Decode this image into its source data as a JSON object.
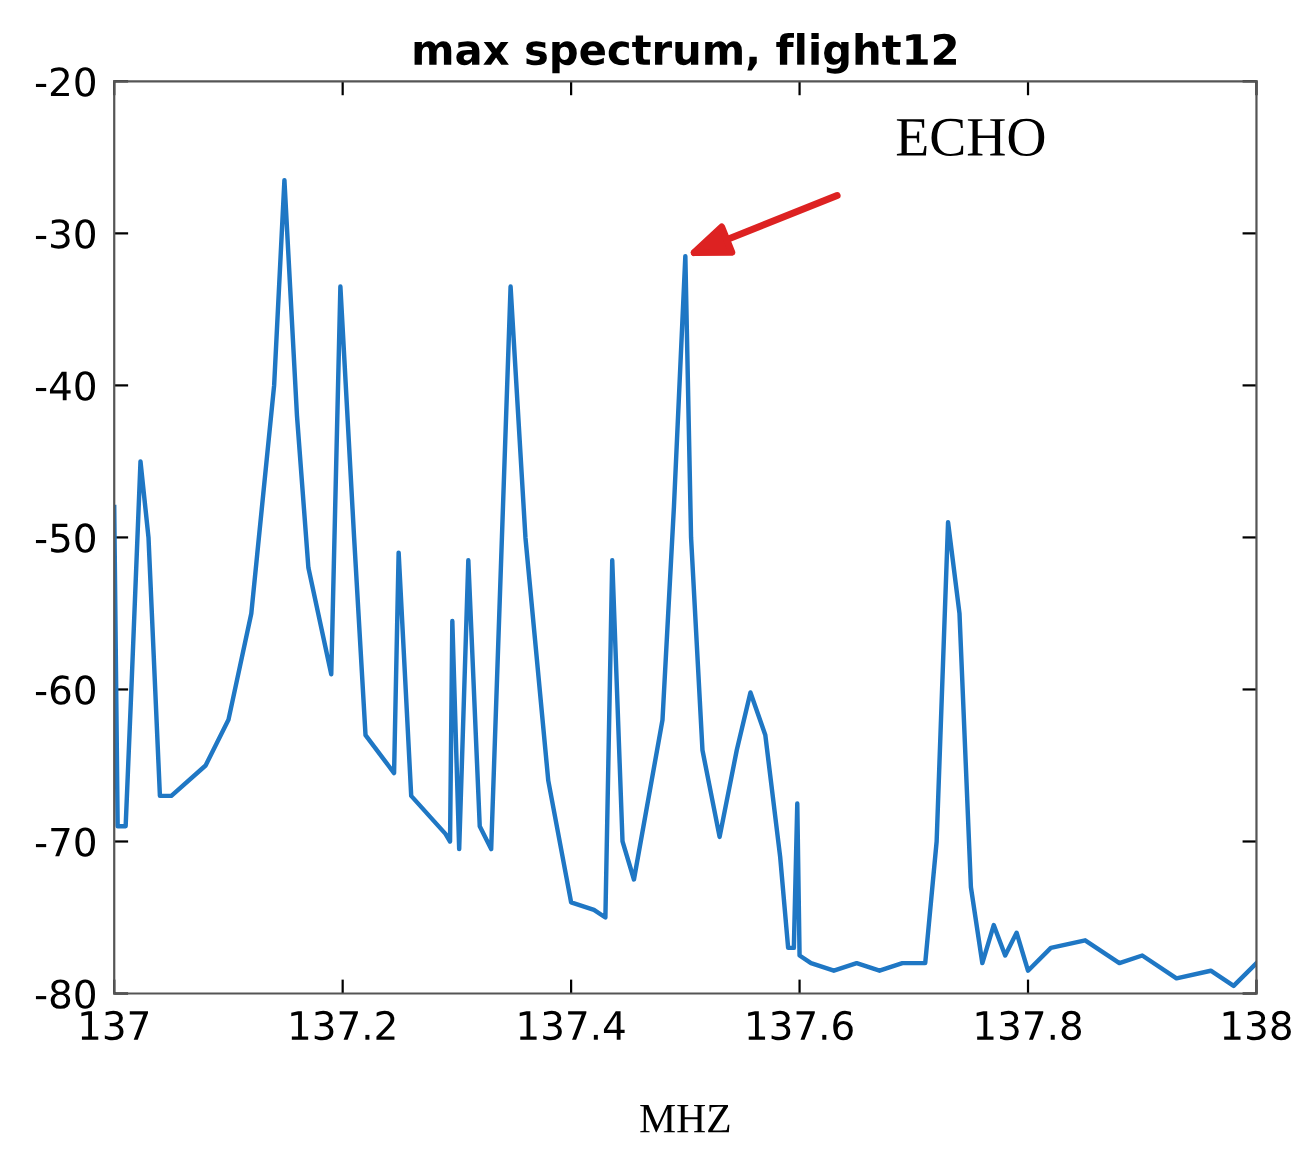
{
  "chart_data": {
    "type": "line",
    "title": "max spectrum, flight12",
    "xlabel": "MHZ",
    "annotations": [
      {
        "text": "ECHO",
        "x": 137.5,
        "y": -31.5
      }
    ],
    "xlim": [
      137,
      138
    ],
    "xticks": [
      137,
      137.2,
      137.4,
      137.6,
      137.8,
      138
    ],
    "ylim": [
      -80,
      -20
    ],
    "yticks": [
      -80,
      -70,
      -60,
      -50,
      -40,
      -30,
      -20
    ],
    "grid": false,
    "legend": false,
    "marker": "none",
    "line_style": "solid",
    "series": [
      {
        "color": "#1f77c4",
        "x": [
          137.0,
          137.003,
          137.01,
          137.015,
          137.023,
          137.03,
          137.04,
          137.05,
          137.08,
          137.1,
          137.12,
          137.14,
          137.149,
          137.16,
          137.17,
          137.19,
          137.198,
          137.21,
          137.22,
          137.24,
          137.245,
          137.249,
          137.26,
          137.29,
          137.294,
          137.296,
          137.302,
          137.31,
          137.32,
          137.33,
          137.347,
          137.36,
          137.38,
          137.4,
          137.42,
          137.43,
          137.436,
          137.445,
          137.455,
          137.48,
          137.49,
          137.5,
          137.505,
          137.515,
          137.53,
          137.545,
          137.557,
          137.57,
          137.583,
          137.59,
          137.595,
          137.598,
          137.6,
          137.61,
          137.63,
          137.65,
          137.67,
          137.69,
          137.71,
          137.72,
          137.73,
          137.74,
          137.75,
          137.76,
          137.77,
          137.78,
          137.79,
          137.8,
          137.82,
          137.85,
          137.88,
          137.9,
          137.93,
          137.96,
          137.98,
          138.0
        ],
        "values": [
          -48,
          -69,
          -69,
          -60,
          -45,
          -50,
          -67,
          -67,
          -65,
          -62,
          -55,
          -40,
          -26.5,
          -42,
          -52,
          -59,
          -33.5,
          -50,
          -63,
          -65,
          -65.5,
          -51,
          -67,
          -69.5,
          -70,
          -55.5,
          -70.5,
          -51.5,
          -69,
          -70.5,
          -33.5,
          -50,
          -66,
          -74,
          -74.5,
          -75,
          -51.5,
          -70,
          -72.5,
          -62,
          -48,
          -31.5,
          -50,
          -64,
          -69.7,
          -64,
          -60.2,
          -63,
          -71,
          -77,
          -77,
          -67.5,
          -77.5,
          -78,
          -78.5,
          -78,
          -78.5,
          -78,
          -78,
          -70,
          -49,
          -55,
          -73,
          -78,
          -75.5,
          -77.5,
          -76,
          -78.5,
          -77,
          -76.5,
          -78,
          -77.5,
          -79,
          -78.5,
          -79.5,
          -78
        ]
      }
    ]
  }
}
